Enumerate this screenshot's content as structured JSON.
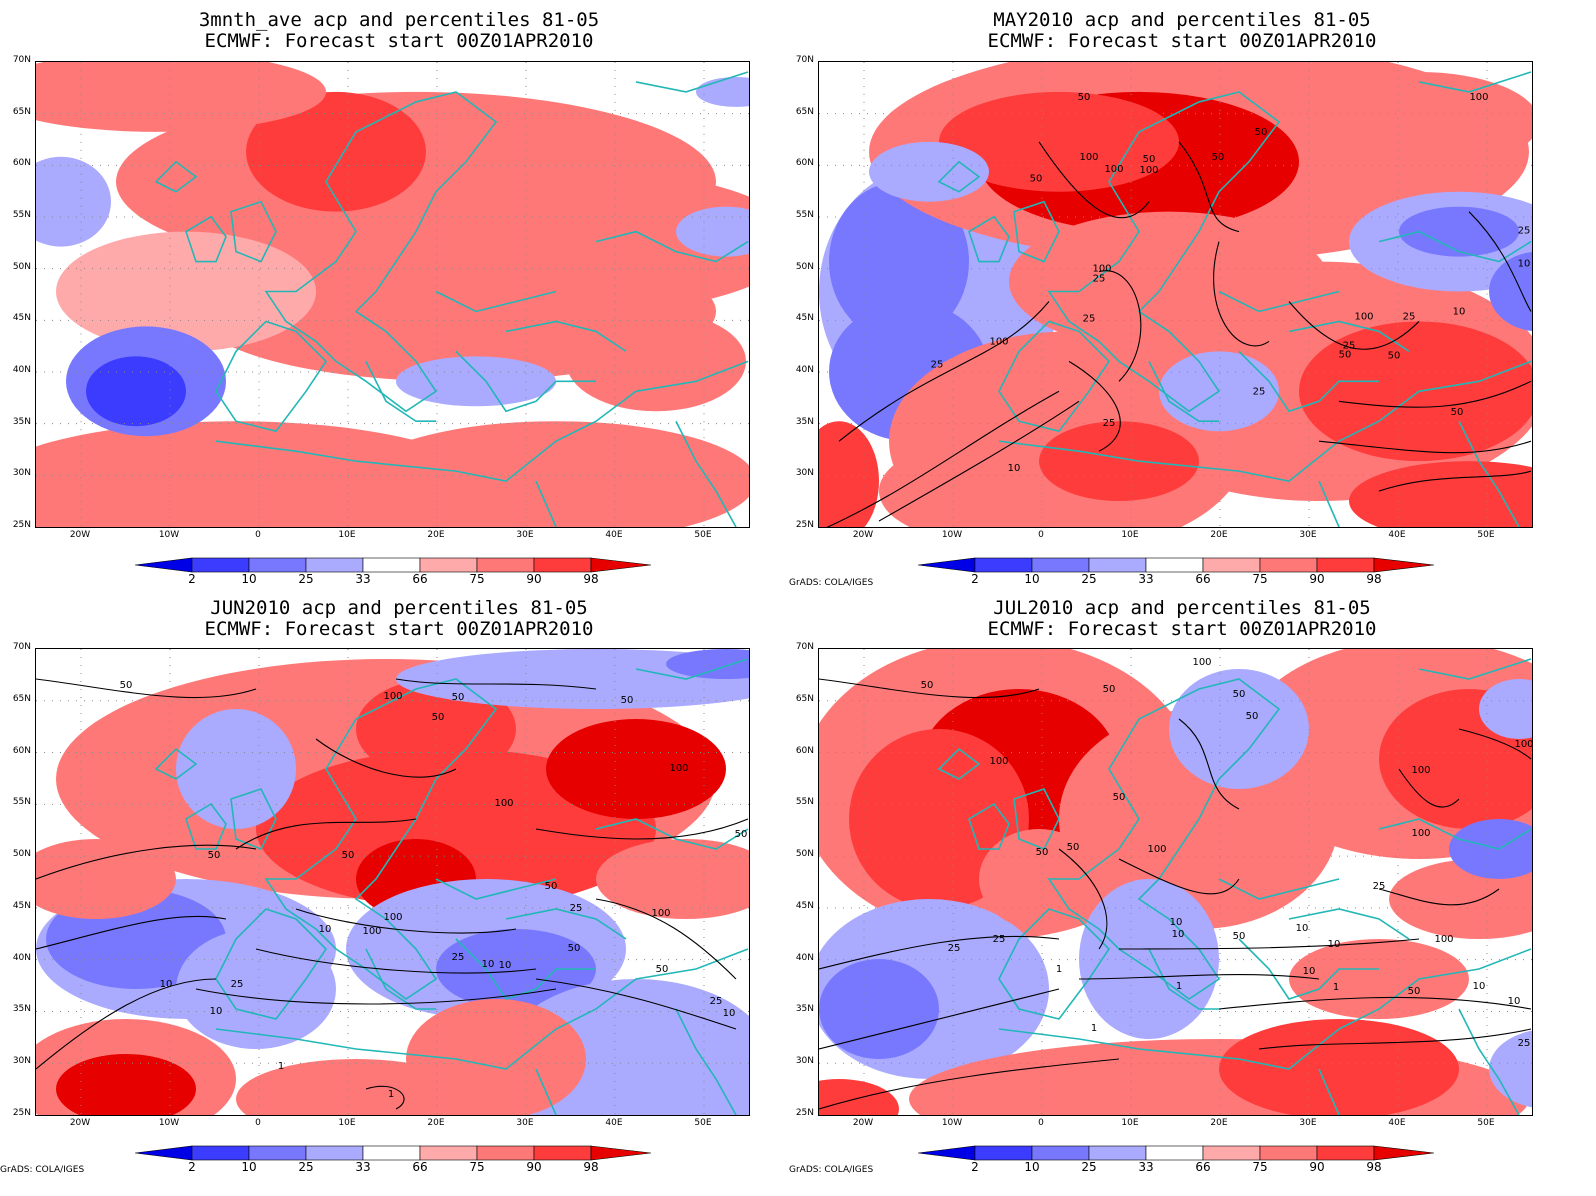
{
  "colorbar": {
    "labels": [
      "2",
      "10",
      "25",
      "33",
      "66",
      "75",
      "90",
      "98"
    ],
    "colors": [
      "#0000e6",
      "#3c3cff",
      "#7878ff",
      "#aaaaff",
      "#ffffff",
      "#ffaaaa",
      "#ff7878",
      "#ff3c3c",
      "#e60000"
    ]
  },
  "axes": {
    "lat_labels": [
      "70N",
      "65N",
      "60N",
      "55N",
      "50N",
      "45N",
      "40N",
      "35N",
      "30N",
      "25N"
    ],
    "lon_labels": [
      "20W",
      "10W",
      "0",
      "10E",
      "20E",
      "30E",
      "40E",
      "50E"
    ]
  },
  "credit": "GrADS: COLA/IGES",
  "panels": [
    {
      "id": "p1",
      "title_line1": "3mnth_ave acp and percentiles 81-05",
      "title_line2": "ECMWF: Forecast start 00Z01APR2010",
      "show_credit": false,
      "contour_labels": []
    },
    {
      "id": "p2",
      "title_line1": "MAY2010 acp and percentiles 81-05",
      "title_line2": "ECMWF: Forecast start 00Z01APR2010",
      "show_credit": true,
      "contour_labels": [
        "50",
        "100",
        "50",
        "50",
        "100",
        "50",
        "50",
        "100",
        "100",
        "25",
        "100",
        "100",
        "25",
        "25",
        "100",
        "50",
        "25",
        "50",
        "25",
        "10",
        "25",
        "10",
        "50",
        "25",
        "10",
        "25"
      ]
    },
    {
      "id": "p3",
      "title_line1": "JUN2010 acp and percentiles 81-05",
      "title_line2": "ECMWF: Forecast start 00Z01APR2010",
      "show_credit": true,
      "contour_labels": [
        "50",
        "100",
        "50",
        "50",
        "50",
        "100",
        "100",
        "50",
        "50",
        "100",
        "100",
        "50",
        "50",
        "10",
        "25",
        "25",
        "10",
        "100",
        "50",
        "25",
        "10",
        "10",
        "10",
        "1",
        "1",
        "25",
        "10",
        "50"
      ]
    },
    {
      "id": "p4",
      "title_line1": "JUL2010 acp and percentiles 81-05",
      "title_line2": "ECMWF: Forecast start 00Z01APR2010",
      "show_credit": true,
      "contour_labels": [
        "50",
        "50",
        "100",
        "50",
        "50",
        "100",
        "100",
        "50",
        "100",
        "100",
        "50",
        "100",
        "50",
        "25",
        "10",
        "25",
        "10",
        "50",
        "25",
        "10",
        "10",
        "100",
        "10",
        "1",
        "1",
        "1",
        "1",
        "10",
        "25",
        "10",
        "50"
      ]
    }
  ]
}
